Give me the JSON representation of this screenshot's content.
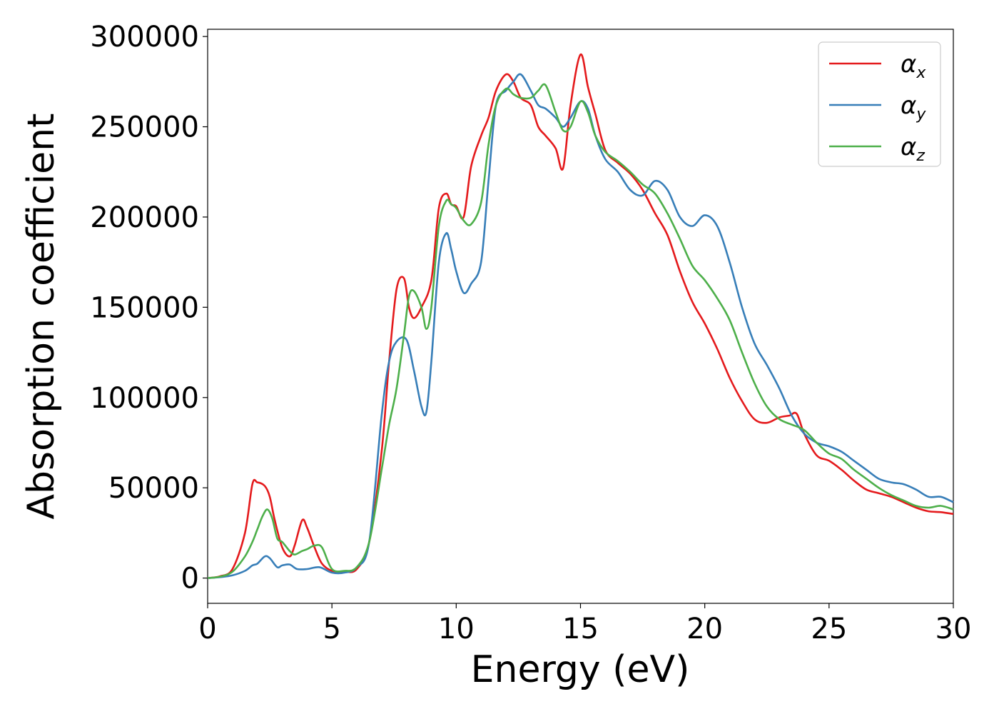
{
  "chart_data": {
    "type": "line",
    "xlabel": "Energy (eV)",
    "ylabel": "Absorption coefficient",
    "xlim": [
      0,
      30
    ],
    "ylim": [
      -14000,
      304000
    ],
    "xticks": [
      0,
      5,
      10,
      15,
      20,
      25,
      30
    ],
    "yticks": [
      0,
      50000,
      100000,
      150000,
      200000,
      250000,
      300000
    ],
    "xtick_labels": [
      "0",
      "5",
      "10",
      "15",
      "20",
      "25",
      "30"
    ],
    "ytick_labels": [
      "0",
      "50000",
      "100000",
      "150000",
      "200000",
      "250000",
      "300000"
    ],
    "grid": false,
    "legend_position": "top-right",
    "series": [
      {
        "name": "α",
        "subscript": "x",
        "color": "#e41a1c",
        "x": [
          0,
          0.5,
          1,
          1.5,
          1.8,
          2.0,
          2.3,
          2.5,
          2.7,
          3.0,
          3.3,
          3.5,
          3.8,
          4.0,
          4.3,
          4.6,
          5.0,
          5.5,
          6.0,
          6.5,
          7.0,
          7.3,
          7.6,
          7.9,
          8.1,
          8.3,
          8.6,
          9.0,
          9.3,
          9.6,
          9.8,
          10.0,
          10.3,
          10.6,
          11.0,
          11.3,
          11.6,
          12.0,
          12.3,
          12.6,
          13.0,
          13.3,
          13.6,
          14.0,
          14.3,
          14.6,
          15.0,
          15.3,
          15.6,
          16.0,
          16.5,
          17.0,
          17.5,
          18.0,
          18.5,
          19.0,
          19.5,
          20.0,
          20.5,
          21.0,
          21.5,
          22.0,
          22.5,
          23.0,
          23.4,
          23.7,
          24.0,
          24.5,
          25.0,
          25.5,
          26.0,
          26.5,
          27.0,
          27.5,
          28.0,
          28.5,
          29.0,
          29.5,
          30.0
        ],
        "y": [
          0,
          1000,
          5000,
          25000,
          52000,
          53000,
          51000,
          45000,
          32000,
          17000,
          12000,
          18000,
          32000,
          28000,
          17000,
          8000,
          4000,
          3500,
          5000,
          20000,
          70000,
          120000,
          160000,
          166000,
          150000,
          144000,
          150000,
          165000,
          205000,
          213000,
          207000,
          206000,
          200000,
          228000,
          245000,
          255000,
          270000,
          279000,
          275000,
          266000,
          262000,
          250000,
          245000,
          238000,
          227000,
          262000,
          290000,
          272000,
          257000,
          237000,
          230000,
          224000,
          215000,
          202000,
          190000,
          170000,
          153000,
          141000,
          127000,
          111000,
          98000,
          88000,
          86000,
          89000,
          90000,
          91000,
          80000,
          68000,
          65000,
          60000,
          54000,
          49000,
          47000,
          45000,
          42000,
          39000,
          37000,
          36500,
          35500
        ]
      },
      {
        "name": "α",
        "subscript": "y",
        "color": "#377eb8",
        "x": [
          0,
          0.5,
          1,
          1.5,
          1.8,
          2.0,
          2.3,
          2.5,
          2.8,
          3.0,
          3.3,
          3.6,
          4.0,
          4.5,
          5.0,
          5.5,
          6.0,
          6.5,
          7.0,
          7.3,
          7.6,
          8.0,
          8.3,
          8.6,
          8.8,
          9.0,
          9.3,
          9.6,
          9.8,
          10.0,
          10.3,
          10.6,
          11.0,
          11.3,
          11.6,
          12.0,
          12.3,
          12.6,
          13.0,
          13.3,
          13.6,
          14.0,
          14.3,
          14.6,
          15.0,
          15.3,
          15.6,
          16.0,
          16.5,
          17.0,
          17.5,
          18.0,
          18.5,
          19.0,
          19.5,
          20.0,
          20.5,
          21.0,
          21.5,
          22.0,
          22.5,
          23.0,
          23.5,
          24.0,
          24.5,
          25.0,
          25.5,
          26.0,
          26.5,
          27.0,
          27.5,
          28.0,
          28.5,
          29.0,
          29.5,
          30.0
        ],
        "y": [
          0,
          500,
          1500,
          4000,
          7000,
          8000,
          12000,
          11000,
          6000,
          7000,
          7500,
          5000,
          5000,
          6000,
          3000,
          3000,
          6000,
          20000,
          90000,
          120000,
          131000,
          132000,
          115000,
          95000,
          92000,
          120000,
          175000,
          191000,
          182000,
          170000,
          158000,
          163000,
          175000,
          220000,
          262000,
          270000,
          275000,
          279000,
          270000,
          262000,
          260000,
          255000,
          250000,
          255000,
          264000,
          260000,
          245000,
          232000,
          225000,
          215000,
          212000,
          220000,
          215000,
          200000,
          195000,
          201000,
          195000,
          175000,
          150000,
          130000,
          118000,
          105000,
          90000,
          80000,
          75000,
          73000,
          70000,
          65000,
          60000,
          55000,
          53000,
          52000,
          49000,
          45000,
          45000,
          42000
        ]
      },
      {
        "name": "α",
        "subscript": "z",
        "color": "#4daf4a",
        "x": [
          0,
          0.5,
          1,
          1.5,
          1.8,
          2.0,
          2.2,
          2.4,
          2.6,
          2.8,
          3.0,
          3.3,
          3.5,
          3.8,
          4.0,
          4.3,
          4.6,
          5.0,
          5.5,
          6.0,
          6.5,
          7.0,
          7.3,
          7.6,
          7.9,
          8.1,
          8.3,
          8.6,
          8.8,
          9.0,
          9.3,
          9.6,
          9.8,
          10.0,
          10.3,
          10.6,
          11.0,
          11.3,
          11.6,
          12.0,
          12.3,
          12.6,
          13.0,
          13.3,
          13.6,
          14.0,
          14.3,
          14.6,
          15.0,
          15.3,
          15.6,
          16.0,
          16.5,
          17.0,
          17.5,
          18.0,
          18.5,
          19.0,
          19.5,
          20.0,
          20.5,
          21.0,
          21.5,
          22.0,
          22.5,
          23.0,
          23.5,
          24.0,
          24.5,
          25.0,
          25.5,
          26.0,
          26.5,
          27.0,
          27.5,
          28.0,
          28.5,
          29.0,
          29.5,
          30.0
        ],
        "y": [
          0,
          800,
          3500,
          12000,
          20000,
          27000,
          34000,
          38000,
          33000,
          22000,
          20000,
          15000,
          13000,
          15000,
          16000,
          18000,
          17000,
          5000,
          4000,
          6000,
          20000,
          60000,
          85000,
          105000,
          135000,
          156000,
          159000,
          150000,
          138000,
          150000,
          195000,
          209000,
          207000,
          205000,
          198000,
          196000,
          208000,
          240000,
          262000,
          271000,
          268000,
          266000,
          266000,
          270000,
          273000,
          258000,
          248000,
          250000,
          264000,
          258000,
          245000,
          236000,
          231000,
          225000,
          218000,
          213000,
          202000,
          188000,
          173000,
          165000,
          155000,
          143000,
          125000,
          108000,
          95000,
          88000,
          85000,
          82000,
          75000,
          69000,
          66000,
          60000,
          55000,
          50000,
          46000,
          43000,
          40000,
          39000,
          40000,
          38000
        ]
      }
    ]
  }
}
